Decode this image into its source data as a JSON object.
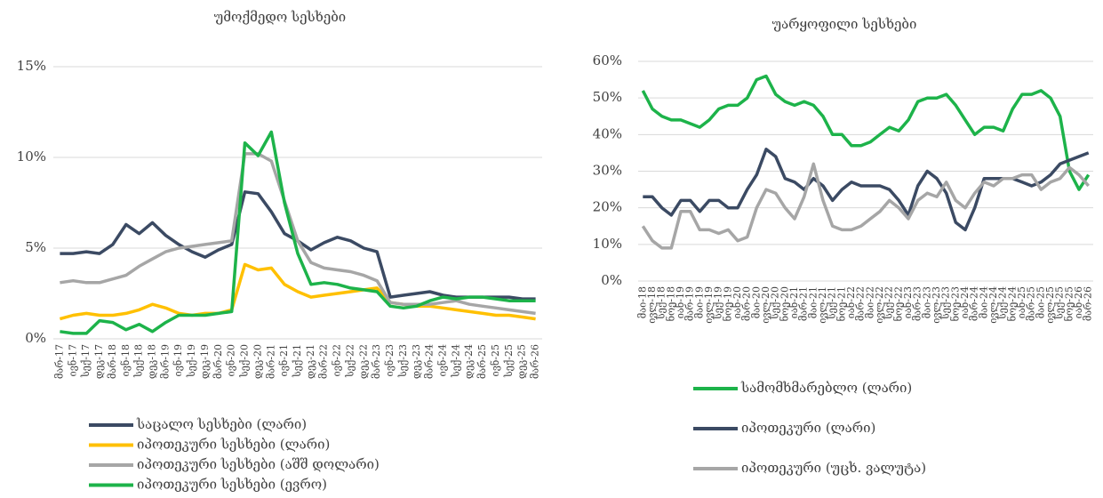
{
  "chart_data": [
    {
      "type": "line",
      "title": "უმოქმედო სესხები",
      "categories": [
        "მარ-17",
        "ივნ-17",
        "სექ-17",
        "დეკ-17",
        "მარ-18",
        "ივნ-18",
        "სექ-18",
        "დეკ-18",
        "მარ-19",
        "ივნ-19",
        "სექ-19",
        "დეკ-19",
        "მარ-20",
        "ივნ-20",
        "სექ-20",
        "დეკ-20",
        "მარ-21",
        "ივნ-21",
        "სექ-21",
        "დეკ-21",
        "მარ-22",
        "ივნ-22",
        "სექ-22",
        "დეკ-22",
        "მარ-23",
        "ივნ-23",
        "სექ-23",
        "დეკ-23",
        "მარ-24",
        "ივნ-24",
        "სექ-24",
        "დეკ-24",
        "მარ-25",
        "ივნ-25",
        "სექ-25",
        "დეკ-25",
        "მარ-26"
      ],
      "series": [
        {
          "name": "საცალო სესხები (ლარი)",
          "color": "#3b4a63",
          "values": [
            4.7,
            4.7,
            4.8,
            4.7,
            5.2,
            6.3,
            5.8,
            6.4,
            5.7,
            5.2,
            4.8,
            4.5,
            4.9,
            5.2,
            8.1,
            8.0,
            7.0,
            5.8,
            5.4,
            4.9,
            5.3,
            5.6,
            5.4,
            5.0,
            4.8,
            2.3,
            2.4,
            2.5,
            2.6,
            2.4,
            2.3,
            2.3,
            2.3,
            2.3,
            2.3,
            2.2,
            2.2
          ]
        },
        {
          "name": "იპოთეკური სესხები (ლარი)",
          "color": "#ffc000",
          "values": [
            1.1,
            1.3,
            1.4,
            1.3,
            1.3,
            1.4,
            1.6,
            1.9,
            1.7,
            1.4,
            1.3,
            1.4,
            1.4,
            1.6,
            4.1,
            3.8,
            3.9,
            3.0,
            2.6,
            2.3,
            2.4,
            2.5,
            2.6,
            2.7,
            2.8,
            2.0,
            1.9,
            1.8,
            1.8,
            1.7,
            1.6,
            1.5,
            1.4,
            1.3,
            1.3,
            1.2,
            1.1
          ]
        },
        {
          "name": "იპოთეკური სესხები (აშშ დოლარი)",
          "color": "#a6a6a6",
          "values": [
            3.1,
            3.2,
            3.1,
            3.1,
            3.3,
            3.5,
            4.0,
            4.4,
            4.8,
            5.0,
            5.1,
            5.2,
            5.3,
            5.4,
            10.2,
            10.2,
            9.8,
            7.6,
            5.4,
            4.2,
            3.9,
            3.8,
            3.7,
            3.5,
            3.2,
            2.0,
            1.9,
            1.9,
            1.9,
            2.0,
            2.1,
            1.9,
            1.8,
            1.7,
            1.6,
            1.5,
            1.4
          ]
        },
        {
          "name": "იპოთეკური სესხები (ევრო)",
          "color": "#1db34a",
          "values": [
            0.4,
            0.3,
            0.3,
            1.0,
            0.9,
            0.5,
            0.8,
            0.4,
            0.9,
            1.3,
            1.3,
            1.3,
            1.4,
            1.5,
            10.8,
            10.1,
            11.4,
            7.5,
            4.7,
            3.0,
            3.1,
            3.0,
            2.8,
            2.7,
            2.6,
            1.8,
            1.7,
            1.8,
            2.1,
            2.3,
            2.2,
            2.3,
            2.3,
            2.2,
            2.1,
            2.1,
            2.1
          ]
        }
      ],
      "ylim": [
        0,
        15
      ],
      "yticks": [
        {
          "value": 0,
          "label": "0%"
        },
        {
          "value": 5,
          "label": "5%"
        },
        {
          "value": 10,
          "label": "10%"
        },
        {
          "value": 15,
          "label": "15%"
        }
      ],
      "grid": true,
      "legend": "bottom"
    },
    {
      "type": "line",
      "title": "უარყოფილი სესხები",
      "categories": [
        "მაი-18",
        "ივლ-18",
        "სექ-18",
        "ნოე-18",
        "იან-19",
        "მარ-19",
        "მაი-19",
        "ივლ-19",
        "სექ-19",
        "ნოე-19",
        "იან-20",
        "მარ-20",
        "მაი-20",
        "ივლ-20",
        "სექ-20",
        "ნოე-20",
        "იან-21",
        "მარ-21",
        "მაი-21",
        "ივლ-21",
        "სექ-21",
        "ნოე-21",
        "იან-22",
        "მარ-22",
        "მაი-22",
        "ივლ-22",
        "სექ-22",
        "ნოე-22",
        "იან-23",
        "მარ-23",
        "მაი-23",
        "ივლ-23",
        "სექ-23",
        "ნოე-23",
        "იან-24",
        "მარ-24",
        "მაი-24",
        "ივლ-24",
        "სექ-24",
        "ნოე-24",
        "იან-25",
        "მარ-25",
        "მაი-25",
        "ივლ-25",
        "სექ-25",
        "ნოე-25",
        "იან-26",
        "მარ-26"
      ],
      "series": [
        {
          "name": "სამომხმარებლო (ლარი)",
          "color": "#1db34a",
          "values": [
            52,
            47,
            45,
            44,
            44,
            43,
            42,
            44,
            47,
            48,
            48,
            50,
            55,
            56,
            51,
            49,
            48,
            49,
            48,
            45,
            40,
            40,
            37,
            37,
            38,
            40,
            42,
            41,
            44,
            49,
            50,
            50,
            51,
            48,
            44,
            40,
            42,
            42,
            41,
            47,
            51,
            51,
            52,
            50,
            45,
            30,
            25,
            29
          ]
        },
        {
          "name": "იპოთეკური (ლარი)",
          "color": "#3b4a63",
          "values": [
            23,
            23,
            20,
            18,
            22,
            22,
            19,
            22,
            22,
            20,
            20,
            25,
            29,
            36,
            34,
            28,
            27,
            25,
            28,
            26,
            22,
            25,
            27,
            26,
            26,
            26,
            25,
            22,
            18,
            26,
            30,
            28,
            24,
            16,
            14,
            20,
            28,
            28,
            28,
            28,
            27,
            26,
            27,
            29,
            32,
            33,
            34,
            35
          ]
        },
        {
          "name": "იპოთეკური (უცხ. ვალუტა)",
          "color": "#a6a6a6",
          "values": [
            15,
            11,
            9,
            9,
            19,
            19,
            14,
            14,
            13,
            14,
            11,
            12,
            20,
            25,
            24,
            20,
            17,
            23,
            32,
            22,
            15,
            14,
            14,
            15,
            17,
            19,
            22,
            20,
            17,
            22,
            24,
            23,
            27,
            22,
            20,
            24,
            27,
            26,
            28,
            28,
            29,
            29,
            25,
            27,
            28,
            31,
            29,
            26
          ]
        }
      ],
      "ylim": [
        0,
        60
      ],
      "yticks": [
        {
          "value": 0,
          "label": "0%"
        },
        {
          "value": 10,
          "label": "10%"
        },
        {
          "value": 20,
          "label": "20%"
        },
        {
          "value": 30,
          "label": "30%"
        },
        {
          "value": 40,
          "label": "40%"
        },
        {
          "value": 50,
          "label": "50%"
        },
        {
          "value": 60,
          "label": "60%"
        }
      ],
      "grid": true,
      "legend": "bottom"
    }
  ]
}
